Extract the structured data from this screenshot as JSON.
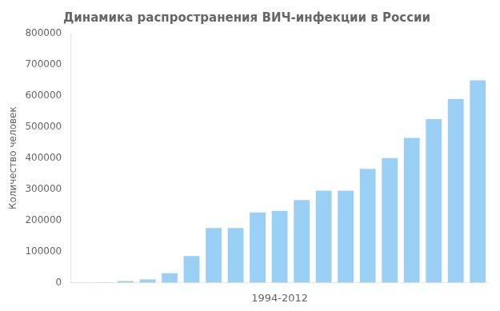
{
  "chart_data": {
    "type": "bar",
    "title": "Динамика распространения ВИЧ-инфекции в России",
    "xlabel": "1994-2012",
    "ylabel": "Количество человек",
    "categories": [
      null,
      null,
      null,
      null,
      null,
      null,
      null,
      null,
      null,
      null,
      null,
      null,
      null,
      null,
      null,
      null,
      null,
      null,
      null
    ],
    "values": [
      500,
      1000,
      5000,
      10000,
      30000,
      85000,
      175000,
      175000,
      225000,
      230000,
      265000,
      295000,
      295000,
      365000,
      400000,
      465000,
      525000,
      590000,
      650000
    ],
    "ylim": [
      0,
      800000
    ],
    "yticks": [
      0,
      100000,
      200000,
      300000,
      400000,
      500000,
      600000,
      700000,
      800000
    ],
    "grid": false,
    "tick_labels": "y"
  }
}
